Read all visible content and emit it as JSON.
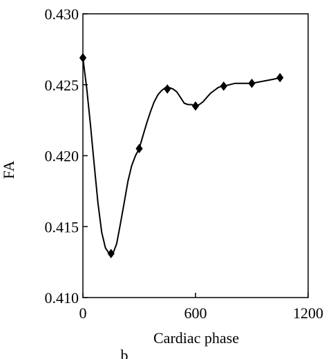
{
  "chart_data": {
    "type": "line",
    "xlabel": "Cardiac phase",
    "ylabel": "FA",
    "panel_label": "b",
    "xlim": [
      0,
      1200
    ],
    "ylim": [
      0.41,
      0.43
    ],
    "x_ticks": [
      {
        "value": 0,
        "label": "0"
      },
      {
        "value": 600,
        "label": "600"
      },
      {
        "value": 1200,
        "label": "1200"
      }
    ],
    "y_ticks": [
      {
        "value": 0.41,
        "label": "0.410"
      },
      {
        "value": 0.415,
        "label": "0.415"
      },
      {
        "value": 0.42,
        "label": "0.420"
      },
      {
        "value": 0.425,
        "label": "0.425"
      },
      {
        "value": 0.43,
        "label": "0.430"
      }
    ],
    "grid": false,
    "series": [
      {
        "marker": "diamond",
        "color": "#000000",
        "x": [
          0,
          150,
          300,
          450,
          600,
          750,
          900,
          1050
        ],
        "y": [
          0.4269,
          0.4131,
          0.4205,
          0.4247,
          0.4235,
          0.4249,
          0.4251,
          0.4255
        ]
      }
    ],
    "curve_x": [
      0,
      20,
      40,
      60,
      80,
      100,
      120,
      140,
      150,
      160,
      180,
      200,
      220,
      240,
      260,
      280,
      300,
      320,
      340,
      360,
      380,
      400,
      420,
      440,
      460,
      480,
      500,
      520,
      540,
      560,
      580,
      600,
      620,
      640,
      660,
      680,
      700,
      720,
      740,
      750,
      780,
      810,
      840,
      870,
      900,
      940,
      980,
      1020,
      1050
    ],
    "curve_y": [
      0.4269,
      0.4248,
      0.4222,
      0.4194,
      0.4167,
      0.4146,
      0.4135,
      0.4131,
      0.4131,
      0.4131,
      0.4138,
      0.4152,
      0.4167,
      0.4182,
      0.4193,
      0.42,
      0.4205,
      0.4214,
      0.4223,
      0.4231,
      0.4238,
      0.4243,
      0.4246,
      0.4248,
      0.4248,
      0.4247,
      0.4245,
      0.4241,
      0.4237,
      0.4236,
      0.4236,
      0.4235,
      0.4236,
      0.4238,
      0.4241,
      0.4244,
      0.4246,
      0.4248,
      0.4249,
      0.4249,
      0.425,
      0.4251,
      0.4251,
      0.4251,
      0.4251,
      0.4252,
      0.4253,
      0.4254,
      0.4255
    ]
  }
}
